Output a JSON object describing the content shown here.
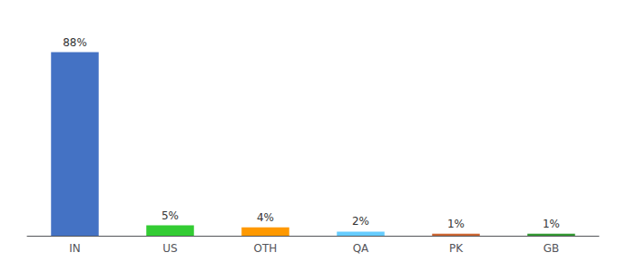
{
  "chart_data": {
    "type": "bar",
    "categories": [
      "IN",
      "US",
      "OTH",
      "QA",
      "PK",
      "GB"
    ],
    "values": [
      88,
      5,
      4,
      2,
      1,
      1
    ],
    "value_labels": [
      "88%",
      "5%",
      "4%",
      "2%",
      "1%",
      "1%"
    ],
    "colors": [
      "#4472c4",
      "#33cc33",
      "#ff9900",
      "#66ccff",
      "#cc6633",
      "#339933"
    ],
    "ylim": [
      0,
      100
    ],
    "data_labels": true,
    "tick_labels": "x",
    "grid": false
  }
}
